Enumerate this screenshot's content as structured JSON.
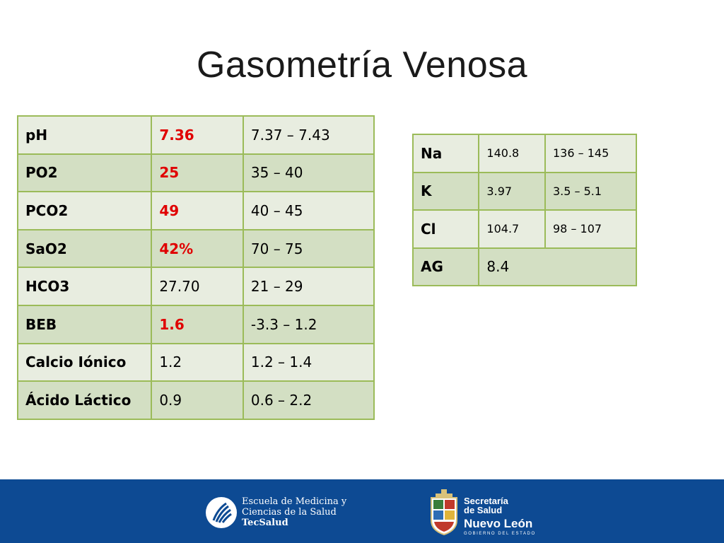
{
  "title": "Gasometría Venosa",
  "gas_table": {
    "rows": [
      {
        "param": "pH",
        "value": "7.36",
        "range": "7.37 – 7.43",
        "abnormal": true
      },
      {
        "param": "PO2",
        "value": "25",
        "range": "35 – 40",
        "abnormal": true
      },
      {
        "param": "PCO2",
        "value": "49",
        "range": "40 – 45",
        "abnormal": true
      },
      {
        "param": "SaO2",
        "value": "42%",
        "range": "70 – 75",
        "abnormal": true
      },
      {
        "param": "HCO3",
        "value": "27.70",
        "range": "21 – 29",
        "abnormal": false
      },
      {
        "param": "BEB",
        "value": "1.6",
        "range": "-3.3 – 1.2",
        "abnormal": true
      },
      {
        "param": "Calcio Iónico",
        "value": "1.2",
        "range": "1.2 – 1.4",
        "abnormal": false
      },
      {
        "param": "Ácido Láctico",
        "value": "0.9",
        "range": "0.6 – 2.2",
        "abnormal": false
      }
    ]
  },
  "electrolyte_table": {
    "rows": [
      {
        "param": "Na",
        "value": "140.8",
        "range": "136 – 145"
      },
      {
        "param": "K",
        "value": "3.97",
        "range": "3.5 – 5.1"
      },
      {
        "param": "Cl",
        "value": "104.7",
        "range": "98 – 107"
      },
      {
        "param": "AG",
        "value": "8.4"
      }
    ]
  },
  "footer": {
    "escuela": {
      "line1": "Escuela de Medicina y",
      "line2": "Ciencias de la Salud",
      "line3": "TecSalud"
    },
    "nuevo_leon": {
      "line1": "Secretaría",
      "line2": "de Salud",
      "name": "Nuevo León",
      "sub": "GOBIERNO DEL ESTADO"
    }
  },
  "colors": {
    "border": "#9bbb59",
    "row_light": "#e8ede0",
    "row_dark": "#d3dfc3",
    "abnormal_text": "#e00000",
    "footer_bg": "#0d4a93"
  }
}
